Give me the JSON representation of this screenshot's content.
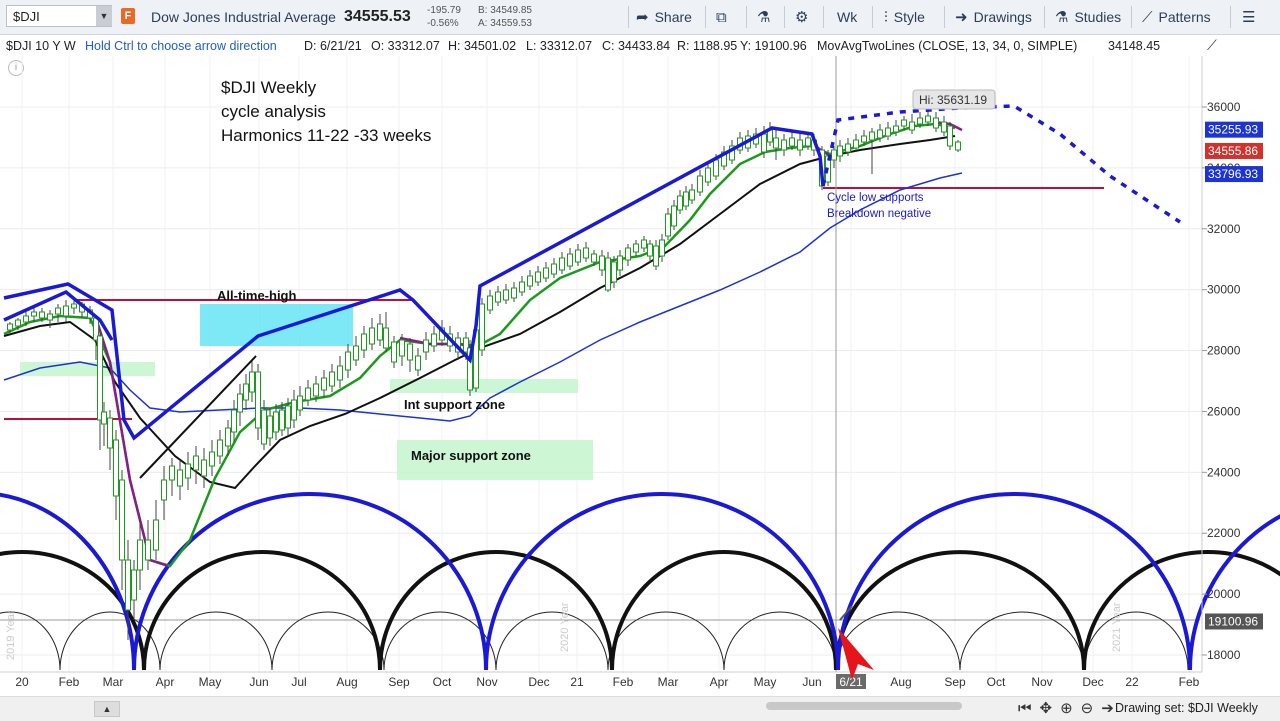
{
  "toolbar": {
    "symbol": "$DJI",
    "flag": "F",
    "name": "Dow Jones Industrial Average",
    "last": "34555.53",
    "change": "-195.79",
    "change_pct": "-0.56%",
    "bid": "B: 34549.85",
    "ask": "A: 34559.53",
    "share": "Share",
    "timeframe": "Wk",
    "style": "Style",
    "drawings": "Drawings",
    "studies": "Studies",
    "patterns": "Patterns"
  },
  "infobar": {
    "symbol_period": "$DJI 10 Y W",
    "hint": "Hold Ctrl to choose arrow direction",
    "date": "D: 6/21/21",
    "open": "O: 33312.07",
    "high": "H: 34501.02",
    "low": "L: 33312.07",
    "close": "C: 34433.84",
    "range": "R: 1188.95",
    "y": "Y: 19100.96",
    "study": "MovAvgTwoLines (CLOSE, 13, 34, 0, SIMPLE)",
    "study_value": "34148.45"
  },
  "annotations": {
    "title_lines": [
      "$DJI Weekly",
      "cycle analysis",
      "Harmonics 11-22 -33 weeks"
    ],
    "ath": "All-time-high",
    "int_support": "Int support zone",
    "major_support": "Major support zone",
    "cycle_note_1": "Cycle low supports",
    "cycle_note_2": "Breakdown negative",
    "hi_label": "Hi: 35631.19"
  },
  "chart_data": {
    "type": "line",
    "y_ticks": [
      "36000",
      "34000",
      "32000",
      "30000",
      "28000",
      "26000",
      "24000",
      "22000",
      "20000",
      "18000"
    ],
    "x_ticks": [
      "20",
      "Feb",
      "Mar",
      "Apr",
      "May",
      "Jun",
      "Jul",
      "Aug",
      "Sep",
      "Oct",
      "Nov",
      "Dec",
      "21",
      "Feb",
      "Mar",
      "Apr",
      "May",
      "Jun",
      "6/21",
      "Aug",
      "Sep",
      "Oct",
      "Nov",
      "Dec",
      "22",
      "Feb"
    ],
    "price_tags": [
      {
        "label": "35255.93",
        "value": 35255.93,
        "color": "#1c33d6"
      },
      {
        "label": "34555.86",
        "value": 34555.86,
        "color": "#d0332e"
      },
      {
        "label": "33796.93",
        "value": 33796.93,
        "color": "#1c33d6"
      },
      {
        "label": "19100.96",
        "value": 19100.96,
        "color": "#555555"
      }
    ],
    "year_labels": [
      "2019 Year",
      "2020 Year",
      "2021 Year"
    ],
    "series": [
      {
        "name": "MovAvg 13",
        "color": "#1c9a1c"
      },
      {
        "name": "MovAvg 34",
        "color": "#111111"
      }
    ],
    "grid": true
  },
  "footer": {
    "drawing_set": "Drawing set: $DJI Weekly"
  }
}
